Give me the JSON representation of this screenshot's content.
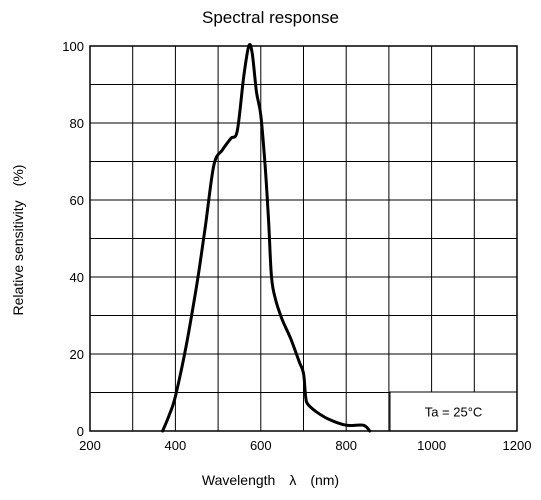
{
  "chart_data": {
    "type": "line",
    "title": "Spectral response",
    "xlabel": "Wavelength　λ　(nm)",
    "ylabel": "Relative sensitivity　(%)",
    "xlim": [
      200,
      1200
    ],
    "ylim": [
      0,
      100
    ],
    "x_ticks": [
      200,
      400,
      600,
      800,
      1000,
      1200
    ],
    "y_ticks": [
      0,
      20,
      40,
      60,
      80,
      100
    ],
    "grid": true,
    "annotation": "Ta = 25°C",
    "series": [
      {
        "x": [
          370,
          385,
          400,
          425,
          450,
          470,
          490,
          510,
          530,
          545,
          560,
          572,
          580,
          590,
          600,
          610,
          618,
          625,
          635,
          650,
          670,
          690,
          700,
          705,
          710,
          730,
          760,
          800,
          840,
          855
        ],
        "y": [
          0,
          4,
          9,
          22,
          38,
          53,
          69,
          73,
          76,
          78,
          92,
          100,
          98,
          88,
          82,
          69,
          55,
          40,
          34,
          29,
          24,
          18,
          15,
          9,
          7,
          5,
          3,
          1.5,
          1.5,
          0
        ]
      }
    ]
  }
}
